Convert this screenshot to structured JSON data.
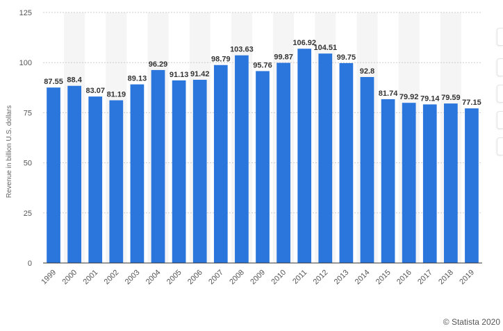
{
  "chart_data": {
    "type": "bar",
    "categories": [
      "1999",
      "2000",
      "2001",
      "2002",
      "2003",
      "2004",
      "2005",
      "2006",
      "2007",
      "2008",
      "2009",
      "2010",
      "2011",
      "2012",
      "2013",
      "2014",
      "2015",
      "2016",
      "2017",
      "2018",
      "2019"
    ],
    "values": [
      87.55,
      88.4,
      83.07,
      81.19,
      89.13,
      96.29,
      91.13,
      91.42,
      98.79,
      103.63,
      95.76,
      99.87,
      106.92,
      104.51,
      99.75,
      92.8,
      81.74,
      79.92,
      79.14,
      79.59,
      77.15
    ],
    "value_labels": [
      "87.55",
      "88.4",
      "83.07",
      "81.19",
      "89.13",
      "96.29",
      "91.13",
      "91.42",
      "98.79",
      "103.63",
      "95.76",
      "99.87",
      "106.92",
      "104.51",
      "99.75",
      "92.8",
      "81.74",
      "79.92",
      "79.14",
      "79.59",
      "77.15"
    ],
    "ylabel": "Revenue in billion U.S. dollars",
    "ylim": [
      0,
      125
    ],
    "yticks": [
      0,
      25,
      50,
      75,
      100,
      125
    ],
    "grid": true,
    "bar_color": "#2a76dd"
  },
  "credit": "© Statista 2020"
}
